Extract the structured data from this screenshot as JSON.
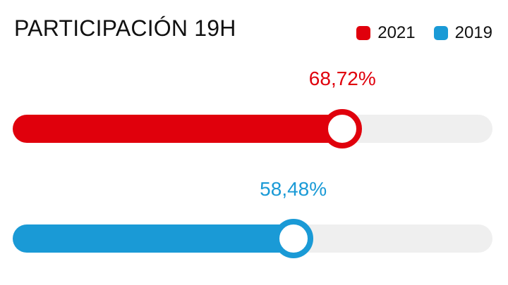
{
  "chart_data": {
    "type": "bar",
    "title": "PARTICIPACIÓN 19H",
    "legend_position": "top-right",
    "scale_max": 100,
    "series": [
      {
        "name": "2021",
        "value": 68.72,
        "label": "68,72%",
        "color": "#e0000c"
      },
      {
        "name": "2019",
        "value": 58.48,
        "label": "58,48%",
        "color": "#1a9ad6"
      }
    ]
  },
  "colors": {
    "track": "#efefef",
    "knob_fill": "#ffffff",
    "title_text": "#111111"
  }
}
